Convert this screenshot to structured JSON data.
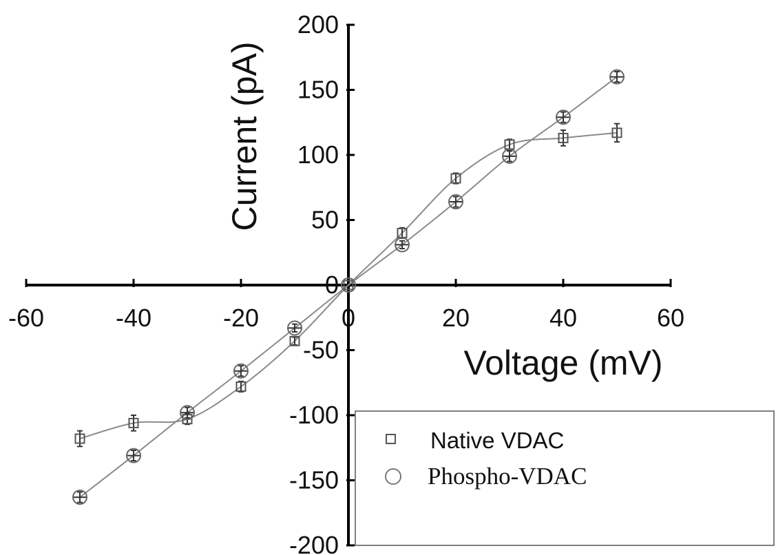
{
  "chart_data": {
    "type": "scatter",
    "xlabel": "Voltage (mV)",
    "ylabel": "Current (pA)",
    "xlim": [
      -60,
      60
    ],
    "ylim": [
      -200,
      200
    ],
    "x_ticks": [
      -60,
      -40,
      -20,
      0,
      20,
      40,
      60
    ],
    "y_ticks": [
      -200,
      -150,
      -100,
      -50,
      0,
      50,
      100,
      150,
      200
    ],
    "grid": false,
    "legend_position": "bottom-right",
    "series": [
      {
        "name": "Native VDAC",
        "marker": "square",
        "color": "#555555",
        "x": [
          -50,
          -40,
          -30,
          -20,
          -10,
          0,
          10,
          20,
          30,
          40,
          50
        ],
        "y": [
          -118,
          -106,
          -103,
          -78,
          -43,
          0,
          40,
          82,
          108,
          113,
          117
        ],
        "error": [
          6,
          6,
          4,
          4,
          3,
          0,
          4,
          4,
          4,
          6,
          7
        ]
      },
      {
        "name": "Phospho-VDAC",
        "marker": "circle",
        "color": "#666666",
        "x": [
          -50,
          -40,
          -30,
          -20,
          -10,
          0,
          10,
          20,
          30,
          40,
          50
        ],
        "y": [
          -163,
          -131,
          -98,
          -66,
          -33,
          0,
          31,
          64,
          99,
          129,
          160
        ],
        "error": [
          4,
          4,
          4,
          4,
          3,
          0,
          3,
          4,
          4,
          4,
          4
        ]
      }
    ]
  }
}
